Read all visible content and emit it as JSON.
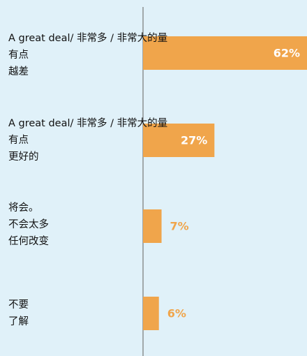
{
  "chart_data": {
    "type": "bar",
    "orientation": "horizontal",
    "categories": [
      [
        "A great deal/ 非常多 / 非常大的量",
        "有点",
        "越差"
      ],
      [
        "A great deal/ 非常多 / 非常大的量",
        "有点",
        "更好的"
      ],
      [
        "将会。",
        "不会太多",
        "任何改变"
      ],
      [
        "不要",
        "了解"
      ]
    ],
    "values": [
      62,
      27,
      7,
      6
    ],
    "value_labels": [
      "62%",
      "27%",
      "7%",
      "6%"
    ],
    "color": "#f0a54b",
    "xlim": [
      0,
      62
    ]
  }
}
